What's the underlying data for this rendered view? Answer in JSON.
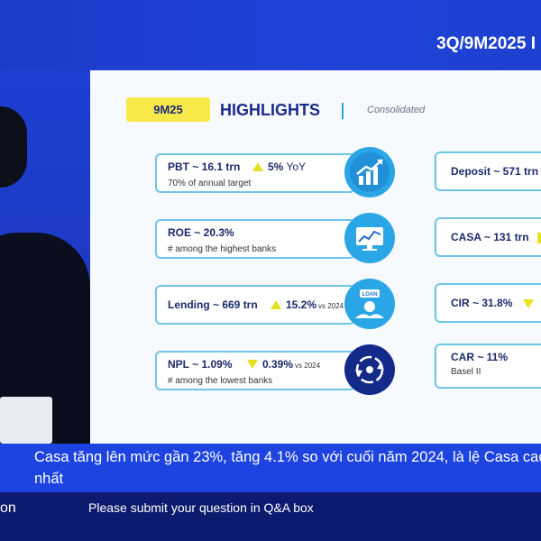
{
  "header": {
    "title": "3Q/9M2025 I"
  },
  "slide": {
    "period_badge": "9M25",
    "heading": "HIGHLIGHTS",
    "scope": "Consolidated",
    "left_cards": [
      {
        "main": "PBT ~ 16.1 trn",
        "change": "5%",
        "change_suffix": "YoY",
        "vs": "",
        "direction": "up",
        "sub": "70% of annual target",
        "icon": "chart-growth-icon"
      },
      {
        "main": "ROE ~ 20.3%",
        "change": "",
        "change_suffix": "",
        "vs": "",
        "direction": "",
        "sub": "# among the highest banks",
        "icon": "monitor-chart-icon"
      },
      {
        "main": "Lending ~ 669 trn",
        "change": "15.2%",
        "change_suffix": "",
        "vs": "vs 2024",
        "direction": "up",
        "sub": "",
        "icon": "loan-icon"
      },
      {
        "main": "NPL ~ 1.09%",
        "change": "0.39%",
        "change_suffix": "",
        "vs": "vs 2024",
        "direction": "down",
        "sub": "# among the lowest banks",
        "icon": "cycle-hands-icon"
      }
    ],
    "right_cards": [
      {
        "main": "Deposit ~ 571 trn",
        "sub": ""
      },
      {
        "main": "CASA ~ 131 trn",
        "sub": ""
      },
      {
        "main": "CIR ~ 31.8%",
        "sub": ""
      },
      {
        "main": "CAR ~ 11%",
        "sub": "Basel II"
      }
    ]
  },
  "ticker": {
    "text": "Casa tăng lên mức gần 23%, tăng 4.1% so với cuối năm 2024, là lệ Casa cao nhất"
  },
  "bottom": {
    "left": "on",
    "message": "Please submit your question in Q&A box"
  },
  "colors": {
    "brand_blue": "#1d44e0",
    "dark_navy": "#0c1b6d",
    "accent_yellow": "#f7e94a",
    "card_border": "#6ec4e8"
  }
}
